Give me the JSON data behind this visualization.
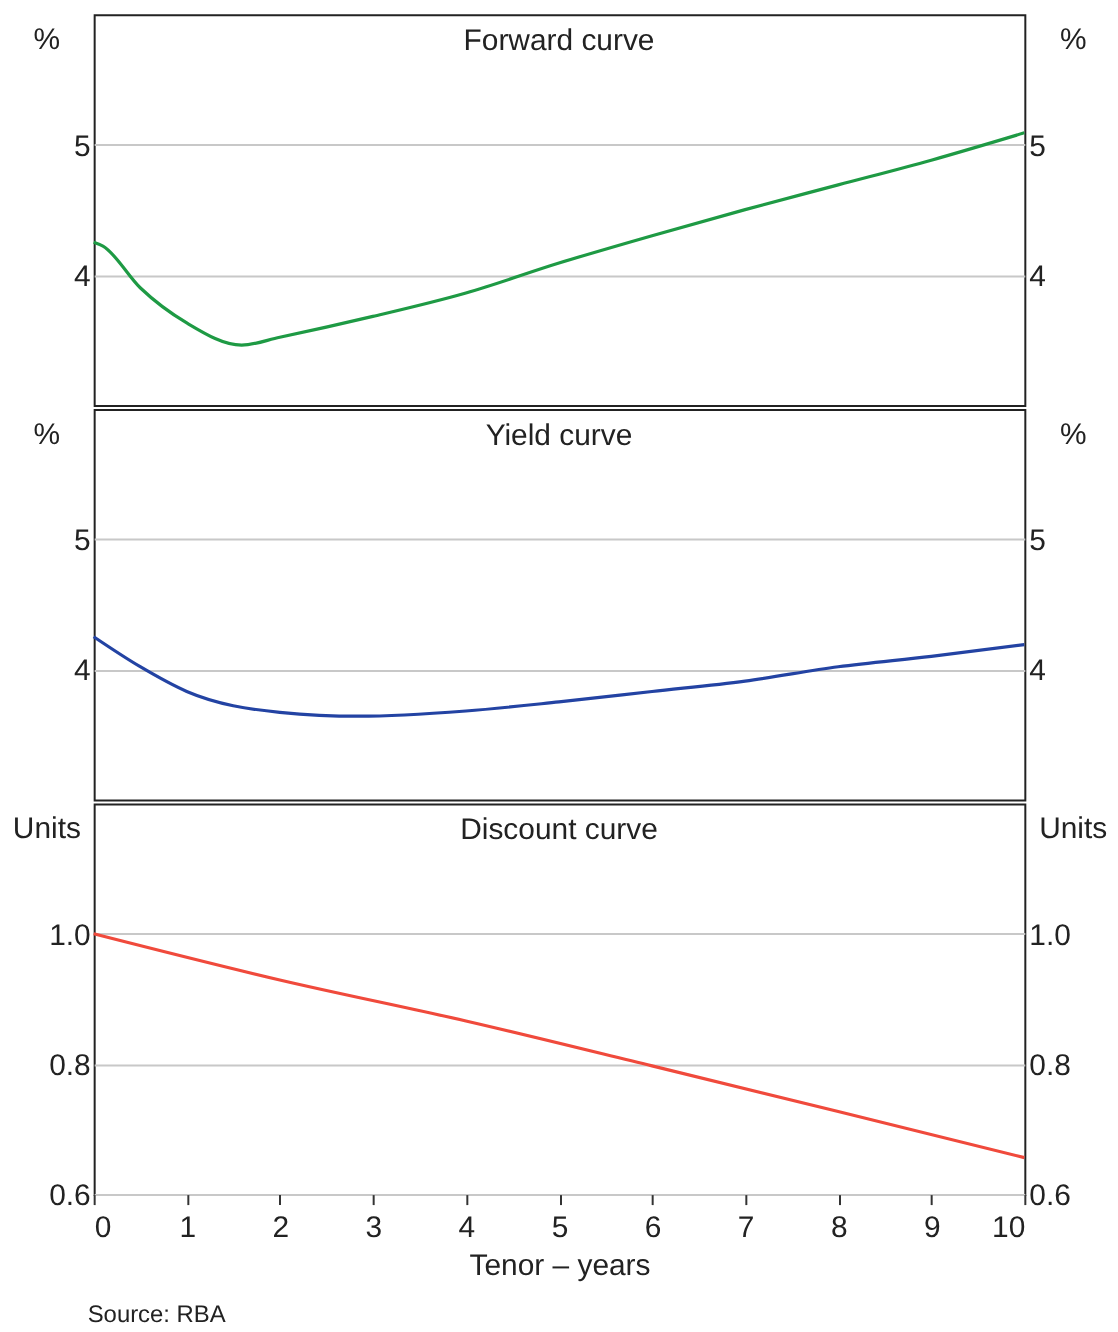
{
  "chart_data": [
    {
      "type": "line",
      "title": "Forward curve",
      "ylabel": "%",
      "y2label": "%",
      "xlim": [
        0,
        10
      ],
      "xticks": [
        0,
        1,
        2,
        3,
        4,
        5,
        6,
        7,
        8,
        9,
        10
      ],
      "ylim": [
        3,
        6
      ],
      "yticks": [
        4,
        5
      ],
      "y2lim": [
        3,
        6
      ],
      "y2ticks": [
        4,
        5
      ],
      "grid": "y",
      "tick_labels": "y",
      "series": [
        {
          "color": "#1e9a44",
          "x": [
            0,
            0.1,
            0.5,
            1,
            1.59,
            2,
            3,
            4,
            5,
            6,
            7,
            8,
            9,
            10
          ],
          "values": [
            4.25,
            4.22,
            3.9,
            3.63,
            3.46,
            3.52,
            3.68,
            3.86,
            4.09,
            4.3,
            4.5,
            4.69,
            4.88,
            5.09
          ]
        }
      ]
    },
    {
      "type": "line",
      "title": "Yield curve",
      "ylabel": "%",
      "y2label": "%",
      "xlim": [
        0,
        10
      ],
      "xticks": [
        0,
        1,
        2,
        3,
        4,
        5,
        6,
        7,
        8,
        9,
        10
      ],
      "ylim": [
        3,
        6
      ],
      "yticks": [
        4,
        5
      ],
      "y2lim": [
        3,
        6
      ],
      "y2ticks": [
        4,
        5
      ],
      "grid": "y",
      "tick_labels": "y",
      "series": [
        {
          "color": "#2343a3",
          "x": [
            0,
            0.5,
            1,
            2,
            2.85,
            4,
            5,
            6,
            7,
            8,
            9,
            10
          ],
          "values": [
            4.25,
            4.02,
            3.83,
            3.67,
            3.64,
            3.68,
            3.75,
            3.83,
            3.91,
            4.02,
            4.1,
            4.19
          ]
        }
      ]
    },
    {
      "type": "line",
      "title": "Discount curve",
      "ylabel": "Units",
      "y2label": "Units",
      "xlabel": "Tenor – years",
      "xlim": [
        0,
        10
      ],
      "xticks": [
        0,
        1,
        2,
        3,
        4,
        5,
        6,
        7,
        8,
        9,
        10
      ],
      "ylim": [
        0.6,
        1.2
      ],
      "yticks": [
        0.6,
        0.8,
        {
          "value": 1,
          "label": "1.0"
        }
      ],
      "y2lim": [
        0.6,
        1.2
      ],
      "y2ticks": [
        0.6,
        0.8,
        {
          "value": 1,
          "label": "1.0"
        }
      ],
      "grid": "y",
      "annotations": [
        "Source: RBA"
      ],
      "series": [
        {
          "color": "#f04a3c",
          "x": [
            0,
            2,
            4,
            6,
            8,
            10
          ],
          "values": [
            1.0,
            0.929,
            0.866,
            0.797,
            0.727,
            0.656
          ]
        }
      ]
    }
  ]
}
